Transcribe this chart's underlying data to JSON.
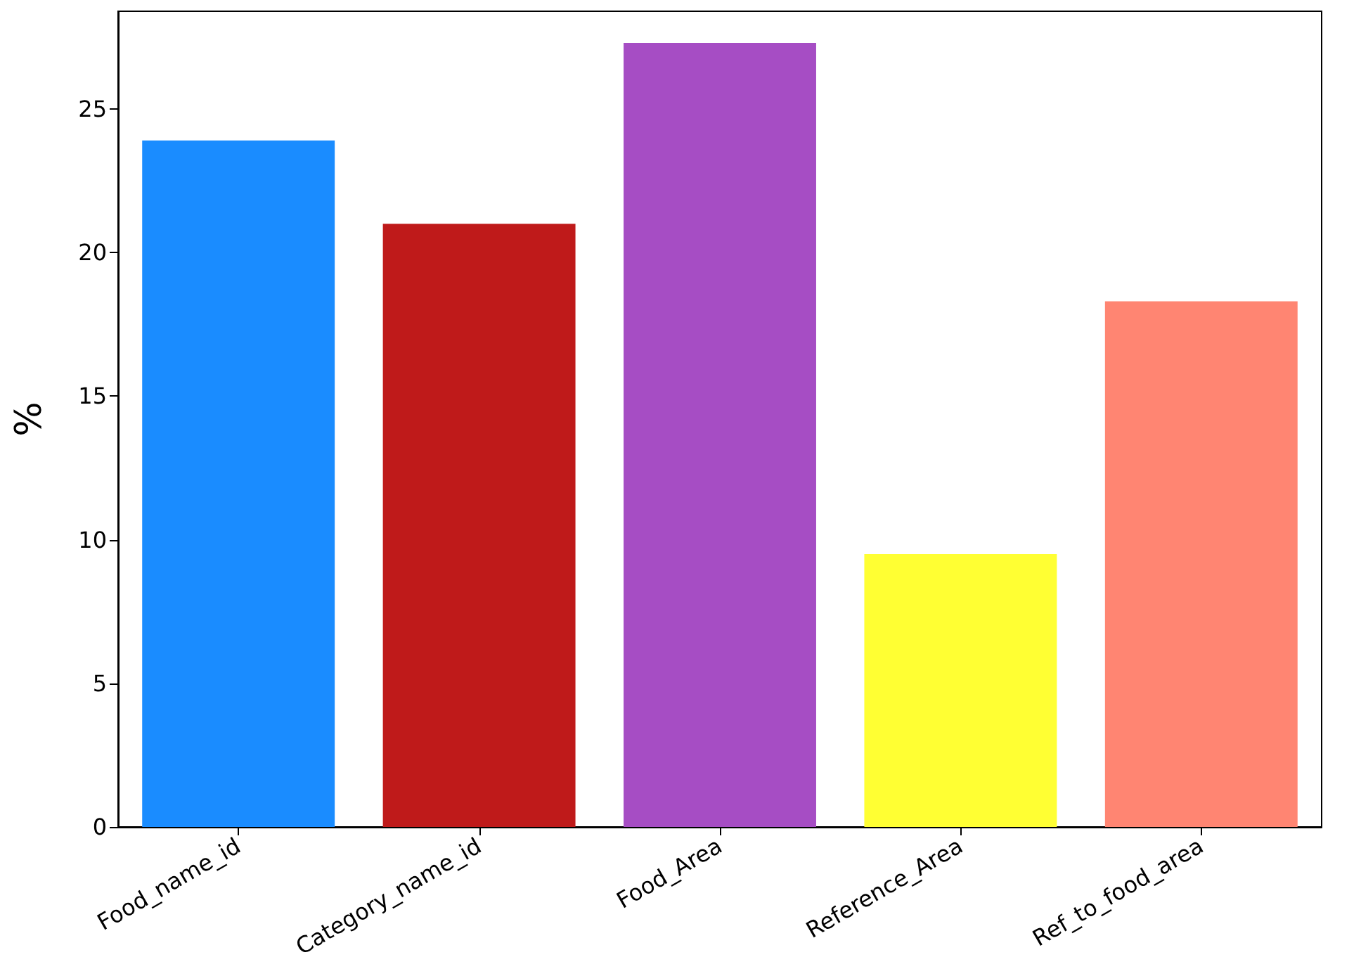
{
  "chart_data": {
    "type": "bar",
    "ylabel": "%",
    "categories": [
      "Food_name_id",
      "Category_name_id",
      "Food_Area",
      "Reference_Area",
      "Ref_to_food_area"
    ],
    "values": [
      23.9,
      21.0,
      27.3,
      9.5,
      18.3
    ],
    "colors": [
      "#1a8cff",
      "#bf1a1a",
      "#a64dc4",
      "#ffff33",
      "#ff8572"
    ],
    "ylim": [
      0,
      28.4
    ],
    "yticks": [
      0,
      5,
      10,
      15,
      20,
      25
    ],
    "grid": false
  }
}
